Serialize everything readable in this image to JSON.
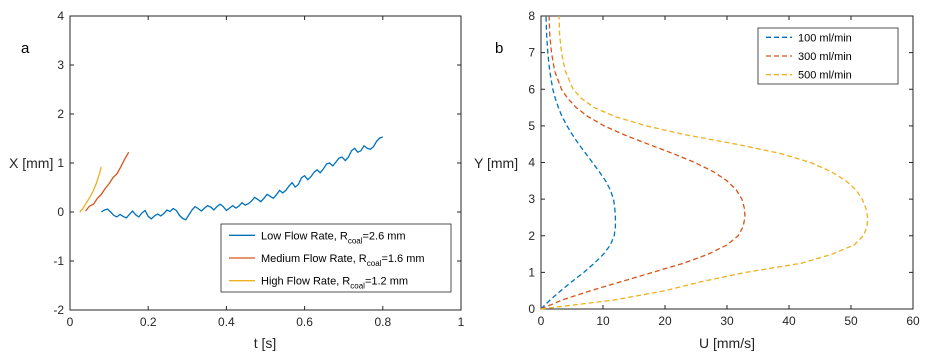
{
  "chart_data": [
    {
      "type": "line",
      "panel_label": "a",
      "xlabel": "t [s]",
      "ylabel": "X [mm]",
      "xlim": [
        0,
        1
      ],
      "ylim": [
        -2,
        4
      ],
      "xticks": [
        "0",
        "0.2",
        "0.4",
        "0.6",
        "0.8",
        "1"
      ],
      "yticks": [
        "-2",
        "-1",
        "0",
        "1",
        "2",
        "3",
        "4"
      ],
      "legend_placement": "bottom-right",
      "series": [
        {
          "name": "Low Flow Rate, R",
          "name_sub": "coal",
          "name_suffix": "=2.6 mm",
          "color": "#0072BD",
          "x": [
            0.08,
            0.088,
            0.096,
            0.104,
            0.112,
            0.12,
            0.128,
            0.136,
            0.144,
            0.152,
            0.16,
            0.168,
            0.176,
            0.184,
            0.192,
            0.2,
            0.208,
            0.216,
            0.224,
            0.232,
            0.24,
            0.248,
            0.256,
            0.264,
            0.272,
            0.28,
            0.288,
            0.296,
            0.304,
            0.312,
            0.32,
            0.328,
            0.336,
            0.344,
            0.352,
            0.36,
            0.368,
            0.376,
            0.384,
            0.392,
            0.4,
            0.408,
            0.416,
            0.424,
            0.432,
            0.44,
            0.448,
            0.456,
            0.464,
            0.472,
            0.48,
            0.488,
            0.496,
            0.504,
            0.512,
            0.52,
            0.528,
            0.536,
            0.544,
            0.552,
            0.56,
            0.568,
            0.576,
            0.584,
            0.592,
            0.6,
            0.608,
            0.616,
            0.624,
            0.632,
            0.64,
            0.648,
            0.656,
            0.664,
            0.672,
            0.68,
            0.688,
            0.696,
            0.704,
            0.712,
            0.72,
            0.728,
            0.736,
            0.744,
            0.752,
            0.76,
            0.768,
            0.776,
            0.784,
            0.792,
            0.8
          ],
          "y": [
            0.0,
            0.04,
            0.06,
            0.0,
            -0.07,
            -0.1,
            -0.05,
            -0.09,
            -0.12,
            -0.05,
            0.02,
            -0.06,
            -0.1,
            -0.02,
            0.03,
            -0.09,
            -0.14,
            -0.08,
            -0.04,
            -0.08,
            -0.03,
            0.04,
            0.01,
            0.07,
            0.03,
            -0.07,
            -0.13,
            -0.16,
            -0.06,
            0.04,
            0.11,
            0.07,
            0.02,
            0.08,
            0.13,
            0.1,
            0.04,
            0.11,
            0.16,
            0.11,
            0.03,
            0.08,
            0.13,
            0.08,
            0.12,
            0.19,
            0.14,
            0.17,
            0.22,
            0.3,
            0.26,
            0.21,
            0.28,
            0.36,
            0.32,
            0.28,
            0.35,
            0.44,
            0.39,
            0.44,
            0.53,
            0.6,
            0.51,
            0.56,
            0.7,
            0.74,
            0.66,
            0.72,
            0.81,
            0.86,
            0.8,
            0.88,
            0.98,
            1.0,
            0.94,
            1.02,
            1.1,
            1.12,
            1.05,
            1.12,
            1.25,
            1.3,
            1.22,
            1.25,
            1.35,
            1.3,
            1.28,
            1.33,
            1.44,
            1.51,
            1.53
          ]
        },
        {
          "name": "Medium Flow Rate, R",
          "name_sub": "coal",
          "name_suffix": "=1.6 mm",
          "color": "#D95319",
          "x": [
            0.04,
            0.05,
            0.06,
            0.07,
            0.08,
            0.09,
            0.1,
            0.11,
            0.12,
            0.13,
            0.14,
            0.15
          ],
          "y": [
            0.02,
            0.12,
            0.16,
            0.28,
            0.36,
            0.48,
            0.58,
            0.7,
            0.78,
            0.92,
            1.08,
            1.22
          ]
        },
        {
          "name": "High Flow Rate, R",
          "name_sub": "coal",
          "name_suffix": "=1.2 mm",
          "color": "#EDB120",
          "x": [
            0.025,
            0.032,
            0.039,
            0.046,
            0.053,
            0.06,
            0.067,
            0.074,
            0.08
          ],
          "y": [
            0.0,
            0.06,
            0.15,
            0.24,
            0.33,
            0.44,
            0.58,
            0.74,
            0.92
          ]
        }
      ]
    },
    {
      "type": "line",
      "panel_label": "b",
      "xlabel": "U [mm/s]",
      "ylabel": "Y [mm]",
      "xlim": [
        0,
        60
      ],
      "ylim": [
        0,
        8
      ],
      "xticks": [
        "0",
        "10",
        "20",
        "30",
        "40",
        "50",
        "60"
      ],
      "yticks": [
        "0",
        "1",
        "2",
        "3",
        "4",
        "5",
        "6",
        "7",
        "8"
      ],
      "legend_placement": "top-right",
      "line_style": "dashed",
      "series": [
        {
          "name": "100 ml/min",
          "color": "#0072BD",
          "y": [
            0.0,
            0.25,
            0.5,
            0.75,
            1.0,
            1.25,
            1.5,
            1.75,
            2.0,
            2.25,
            2.5,
            2.75,
            3.0,
            3.25,
            3.5,
            3.75,
            4.0,
            4.25,
            4.5,
            4.75,
            5.0,
            5.25,
            5.5,
            5.75,
            6.0,
            6.5,
            7.0,
            7.5,
            8.0
          ],
          "x": [
            0.0,
            1.5,
            3.2,
            5.0,
            6.9,
            8.6,
            10.1,
            11.2,
            11.8,
            12.0,
            12.0,
            11.9,
            11.7,
            11.2,
            10.4,
            9.4,
            8.3,
            7.2,
            6.1,
            5.1,
            4.2,
            3.4,
            2.8,
            2.3,
            1.9,
            1.4,
            1.1,
            0.9,
            0.8
          ]
        },
        {
          "name": "300 ml/min",
          "color": "#D95319",
          "y": [
            0.0,
            0.25,
            0.5,
            0.75,
            1.0,
            1.25,
            1.5,
            1.75,
            2.0,
            2.25,
            2.5,
            2.75,
            3.0,
            3.25,
            3.5,
            3.75,
            4.0,
            4.25,
            4.5,
            4.75,
            5.0,
            5.25,
            5.5,
            5.75,
            6.0,
            6.5,
            7.0,
            7.5,
            8.0
          ],
          "x": [
            0.0,
            3.5,
            8.0,
            13.0,
            18.0,
            23.0,
            27.0,
            30.0,
            31.8,
            32.6,
            32.9,
            32.8,
            32.4,
            31.5,
            30.0,
            27.8,
            24.8,
            21.2,
            17.3,
            13.5,
            10.2,
            7.6,
            5.7,
            4.3,
            3.3,
            2.2,
            1.7,
            1.4,
            1.3
          ]
        },
        {
          "name": "500 ml/min",
          "color": "#EDB120",
          "y": [
            0.0,
            0.25,
            0.5,
            0.75,
            1.0,
            1.25,
            1.5,
            1.75,
            2.0,
            2.25,
            2.5,
            2.75,
            3.0,
            3.25,
            3.5,
            3.75,
            4.0,
            4.25,
            4.5,
            4.75,
            5.0,
            5.25,
            5.5,
            5.75,
            6.0,
            6.5,
            7.0,
            7.5,
            8.0
          ],
          "x": [
            0.0,
            12.0,
            20.0,
            26.0,
            33.0,
            42.0,
            47.0,
            50.5,
            52.0,
            52.6,
            52.7,
            52.4,
            51.8,
            50.8,
            49.2,
            46.8,
            43.5,
            38.5,
            31.5,
            23.5,
            17.0,
            12.0,
            8.6,
            6.5,
            5.2,
            3.9,
            3.3,
            3.0,
            2.9
          ]
        }
      ]
    }
  ]
}
